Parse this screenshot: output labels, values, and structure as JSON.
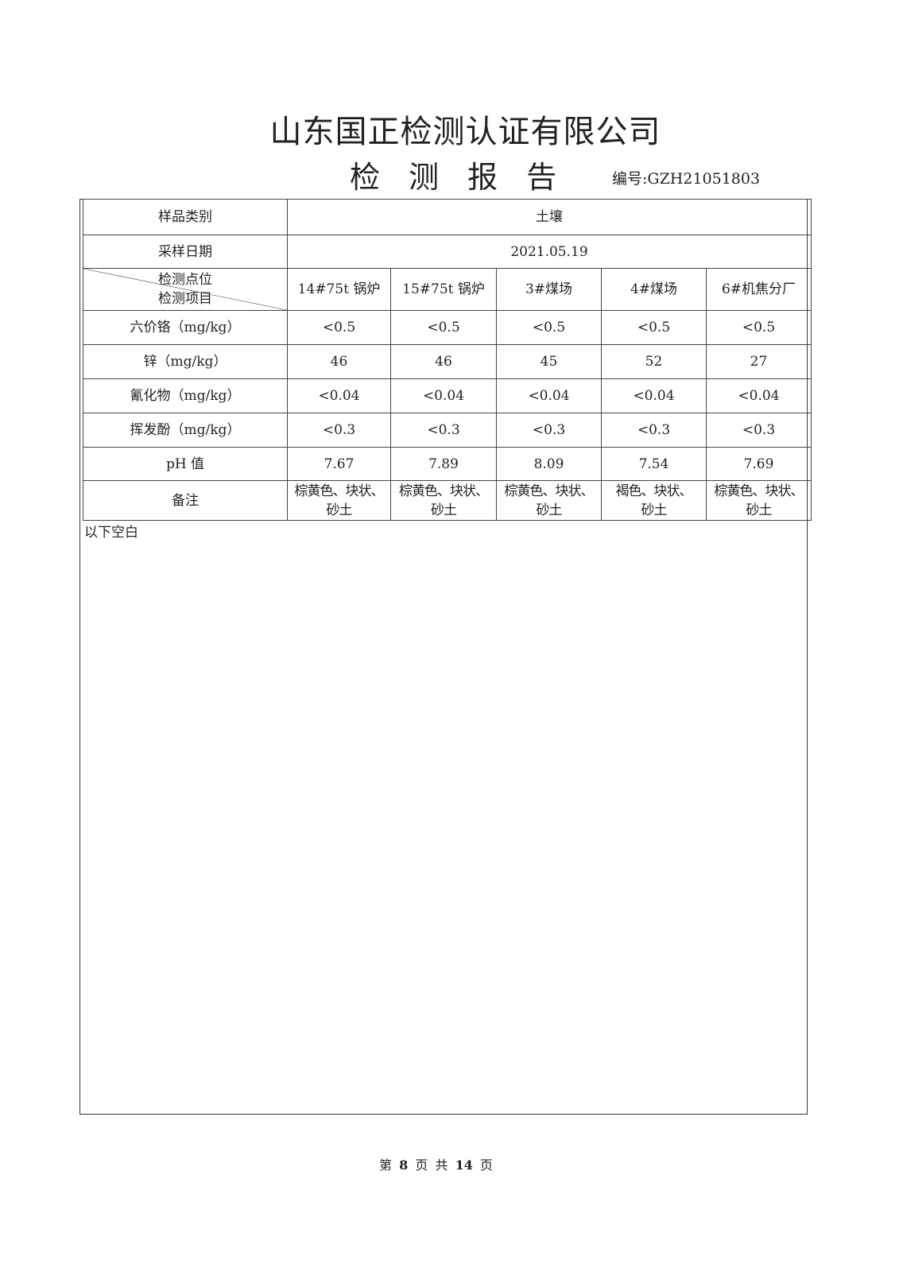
{
  "header": {
    "company": "山东国正检测认证有限公司",
    "title": "检 测 报 告",
    "report_no_label": "编号:",
    "report_no": "GZH21051803"
  },
  "table": {
    "sample_type_label": "样品类别",
    "sample_type": "土壤",
    "sampling_date_label": "采样日期",
    "sampling_date": "2021.05.19",
    "corner_top": "检测点位",
    "corner_bottom": "检测项目",
    "locations": [
      "14#75t 锅炉",
      "15#75t 锅炉",
      "3#煤场",
      "4#煤场",
      "6#机焦分厂"
    ],
    "rows": [
      {
        "item": "六价铬（mg/kg）",
        "values": [
          "<0.5",
          "<0.5",
          "<0.5",
          "<0.5",
          "<0.5"
        ]
      },
      {
        "item": "锌（mg/kg）",
        "values": [
          "46",
          "46",
          "45",
          "52",
          "27"
        ]
      },
      {
        "item": "氰化物（mg/kg）",
        "values": [
          "<0.04",
          "<0.04",
          "<0.04",
          "<0.04",
          "<0.04"
        ]
      },
      {
        "item": "挥发酚（mg/kg）",
        "values": [
          "<0.3",
          "<0.3",
          "<0.3",
          "<0.3",
          "<0.3"
        ]
      },
      {
        "item": "pH 值",
        "values": [
          "7.67",
          "7.89",
          "8.09",
          "7.54",
          "7.69"
        ]
      }
    ],
    "remark_label": "备注",
    "remarks": [
      [
        "棕黄色、块状、",
        "砂土"
      ],
      [
        "棕黄色、块状、",
        "砂土"
      ],
      [
        "棕黄色、块状、",
        "砂土"
      ],
      [
        "褐色、块状、",
        "砂土"
      ],
      [
        "棕黄色、块状、",
        "砂土"
      ]
    ]
  },
  "blank_note": "以下空白",
  "footer": {
    "prefix": "第",
    "page": "8",
    "middle": "页 共",
    "total": "14",
    "suffix": "页"
  }
}
